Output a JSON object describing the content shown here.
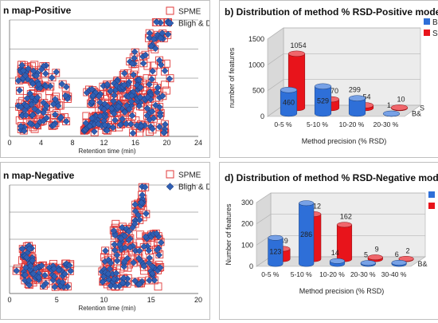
{
  "chart_data": [
    {
      "id": "a",
      "type": "scatter",
      "title": "n map-Positive",
      "xlabel": "Retention time (min)",
      "xlim": [
        0,
        24
      ],
      "xticks": [
        "0",
        "4",
        "8",
        "12",
        "16",
        "20",
        "24"
      ],
      "series": [
        {
          "name": "SPME",
          "marker": "open-square",
          "color": "#e03a3a"
        },
        {
          "name": "Bligh & Dyer",
          "marker": "diamond",
          "color": "#2f5fb3"
        }
      ]
    },
    {
      "id": "b",
      "type": "bar",
      "title": "b) Distribution of method % RSD-Positive mode",
      "xlabel": "Method precision (% RSD)",
      "ylabel": "number of features",
      "ylim": [
        0,
        1500
      ],
      "yticks": [
        "0",
        "500",
        "1000",
        "1500"
      ],
      "categories": [
        "0-5 %",
        "5-10 %",
        "10-20 %",
        "20-30 %"
      ],
      "series": [
        {
          "name": "SPME",
          "legend": "SP",
          "depth_label": "S",
          "color": "#e8141b",
          "values": [
            1054,
            170,
            54,
            10
          ]
        },
        {
          "name": "Bligh & Dyer",
          "legend": "B&",
          "depth_label": "B&",
          "color": "#2e6fd8",
          "values": [
            460,
            529,
            299,
            1
          ]
        }
      ]
    },
    {
      "id": "c",
      "type": "scatter",
      "title": "n map-Negative",
      "xlabel": "Retention time (min)",
      "xlim": [
        0,
        20
      ],
      "xticks": [
        "0",
        "5",
        "10",
        "15",
        "20"
      ],
      "series": [
        {
          "name": "SPME",
          "marker": "open-square",
          "color": "#e03a3a"
        },
        {
          "name": "Bligh & Dyer",
          "marker": "diamond",
          "color": "#2f5fb3"
        }
      ]
    },
    {
      "id": "d",
      "type": "bar",
      "title": "d) Distribution of method % RSD-Negative mode",
      "xlabel": "Method precision (% RSD)",
      "ylabel": "Number of features",
      "ylim": [
        0,
        300
      ],
      "yticks": [
        "0",
        "100",
        "200",
        "300"
      ],
      "categories": [
        "0-5 %",
        "5-10 %",
        "10-20 %",
        "20-30 %",
        "30-40 %"
      ],
      "series": [
        {
          "name": "SPME",
          "legend": "",
          "depth_label": "",
          "color": "#e8141b",
          "values": [
            49,
            212,
            162,
            9,
            2
          ]
        },
        {
          "name": "Bligh & Dyer",
          "legend": "",
          "depth_label": "B&",
          "color": "#2e6fd8",
          "values": [
            123,
            286,
            14,
            5,
            6
          ]
        }
      ]
    }
  ]
}
